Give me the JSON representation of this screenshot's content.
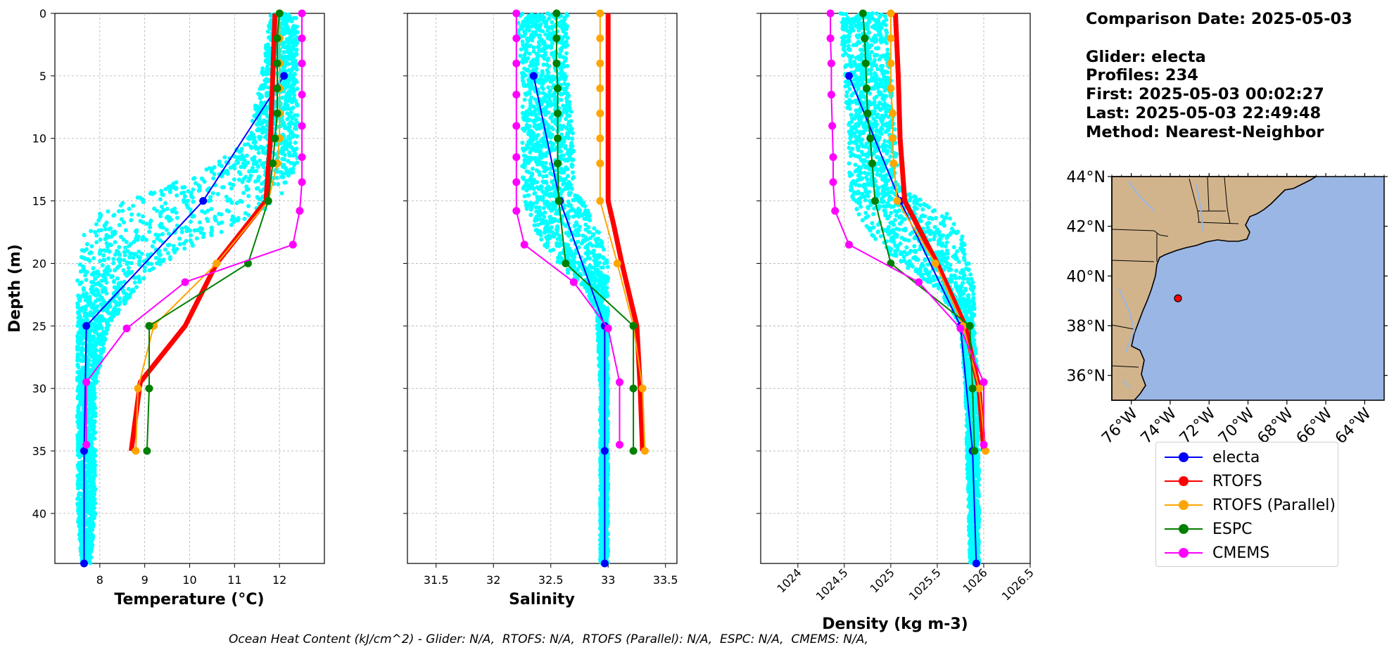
{
  "chart_data": [
    {
      "type": "line",
      "xlabel": "Temperature (°C)",
      "ylabel": "Depth (m)",
      "xlim": [
        7.0,
        13.0
      ],
      "ylim": [
        44,
        0
      ],
      "xticks": [
        8,
        9,
        10,
        11,
        12
      ],
      "yticks": [
        0,
        5,
        10,
        15,
        20,
        25,
        30,
        35,
        40
      ],
      "grid": true,
      "glider_scatter_envelope": [
        [
          0,
          11.8,
          12.4
        ],
        [
          5,
          11.6,
          12.4
        ],
        [
          10,
          11.3,
          12.4
        ],
        [
          12,
          10.6,
          12.4
        ],
        [
          14,
          9.4,
          12.2
        ],
        [
          15,
          8.6,
          12.0
        ],
        [
          16,
          7.9,
          11.6
        ],
        [
          18,
          7.6,
          10.4
        ],
        [
          20,
          7.5,
          9.4
        ],
        [
          22,
          7.5,
          8.8
        ],
        [
          25,
          7.5,
          8.2
        ],
        [
          30,
          7.5,
          7.9
        ],
        [
          35,
          7.5,
          7.9
        ],
        [
          40,
          7.5,
          7.9
        ],
        [
          44,
          7.6,
          7.8
        ]
      ],
      "series": [
        {
          "name": "electa",
          "color": "#0000ff",
          "width": 2,
          "marker": 10,
          "depth": [
            5,
            15,
            25,
            35,
            44
          ],
          "values": [
            12.1,
            10.3,
            7.7,
            7.65,
            7.65
          ]
        },
        {
          "name": "RTOFS",
          "color": "#ff0000",
          "width": 7,
          "marker": 0,
          "depth": [
            0,
            5,
            10,
            15,
            20,
            25,
            29.5,
            35
          ],
          "values": [
            11.9,
            11.85,
            11.8,
            11.7,
            10.6,
            9.9,
            8.9,
            8.7
          ]
        },
        {
          "name": "RTOFS (Parallel)",
          "color": "#ffa500",
          "width": 2,
          "marker": 10,
          "depth": [
            0,
            2,
            4,
            6,
            8,
            10,
            12,
            15,
            20,
            25,
            30,
            35
          ],
          "values": [
            12.0,
            12.0,
            12.0,
            12.0,
            12.0,
            12.0,
            11.95,
            11.75,
            10.6,
            9.2,
            8.85,
            8.8
          ]
        },
        {
          "name": "ESPC",
          "color": "#008000",
          "width": 2,
          "marker": 10,
          "depth": [
            0,
            2,
            4,
            6,
            8,
            10,
            12,
            15,
            20,
            25,
            30,
            35
          ],
          "values": [
            12.0,
            11.95,
            11.95,
            11.95,
            11.95,
            11.9,
            11.85,
            11.75,
            11.3,
            9.1,
            9.1,
            9.05
          ]
        },
        {
          "name": "CMEMS",
          "color": "#ff00ff",
          "width": 2,
          "marker": 10,
          "depth": [
            0,
            2,
            4,
            6.5,
            9,
            11.5,
            13.5,
            15.8,
            18.5,
            21.5,
            25.2,
            29.5,
            34.5
          ],
          "values": [
            12.5,
            12.5,
            12.5,
            12.5,
            12.5,
            12.5,
            12.5,
            12.45,
            12.3,
            9.9,
            8.6,
            7.7,
            7.7
          ]
        }
      ]
    },
    {
      "type": "line",
      "xlabel": "Salinity",
      "ylabel": "",
      "xlim": [
        31.25,
        33.6
      ],
      "ylim": [
        44,
        0
      ],
      "xticks": [
        31.5,
        32.0,
        32.5,
        33.0,
        33.5
      ],
      "yticks": [
        0,
        5,
        10,
        15,
        20,
        25,
        30,
        35,
        40
      ],
      "grid": true,
      "glider_scatter_envelope": [
        [
          0,
          32.2,
          32.65
        ],
        [
          5,
          32.25,
          32.65
        ],
        [
          10,
          32.25,
          32.7
        ],
        [
          14,
          32.25,
          32.7
        ],
        [
          16,
          32.3,
          32.85
        ],
        [
          18,
          32.4,
          32.95
        ],
        [
          20,
          32.55,
          33.0
        ],
        [
          22,
          32.8,
          33.0
        ],
        [
          24,
          32.9,
          33.0
        ],
        [
          30,
          32.93,
          33.0
        ],
        [
          44,
          32.93,
          33.0
        ]
      ],
      "series": [
        {
          "name": "electa",
          "color": "#0000ff",
          "width": 2,
          "marker": 10,
          "depth": [
            5,
            15,
            25,
            35,
            44
          ],
          "values": [
            32.35,
            32.58,
            32.97,
            32.97,
            32.97
          ]
        },
        {
          "name": "RTOFS",
          "color": "#ff0000",
          "width": 7,
          "marker": 0,
          "depth": [
            0,
            5,
            10,
            15,
            17,
            20,
            25,
            30,
            35
          ],
          "values": [
            33.0,
            33.0,
            33.0,
            33.0,
            33.05,
            33.12,
            33.25,
            33.28,
            33.3
          ]
        },
        {
          "name": "RTOFS (Parallel)",
          "color": "#ffa500",
          "width": 2,
          "marker": 10,
          "depth": [
            0,
            2,
            4,
            6,
            8,
            10,
            12,
            15,
            20,
            25,
            30,
            35
          ],
          "values": [
            32.93,
            32.93,
            32.93,
            32.93,
            32.93,
            32.93,
            32.93,
            32.93,
            33.08,
            33.22,
            33.3,
            33.32
          ]
        },
        {
          "name": "ESPC",
          "color": "#008000",
          "width": 2,
          "marker": 10,
          "depth": [
            0,
            2,
            4,
            6,
            8,
            10,
            12,
            15,
            20,
            25,
            30,
            35
          ],
          "values": [
            32.55,
            32.55,
            32.55,
            32.56,
            32.56,
            32.56,
            32.56,
            32.57,
            32.63,
            33.22,
            33.22,
            33.22
          ]
        },
        {
          "name": "CMEMS",
          "color": "#ff00ff",
          "width": 2,
          "marker": 10,
          "depth": [
            0,
            2,
            4,
            6.5,
            9,
            11.5,
            13.5,
            15.8,
            18.5,
            21.5,
            25.2,
            29.5,
            34.5
          ],
          "values": [
            32.2,
            32.2,
            32.2,
            32.2,
            32.2,
            32.2,
            32.2,
            32.2,
            32.27,
            32.7,
            33.0,
            33.1,
            33.1
          ]
        }
      ]
    },
    {
      "type": "line",
      "xlabel": "Density (kg m-3)",
      "ylabel": "",
      "xlim": [
        1023.6,
        1026.5
      ],
      "ylim": [
        44,
        0
      ],
      "xticks": [
        1024.0,
        1024.5,
        1025.0,
        1025.5,
        1026.0,
        1026.5
      ],
      "yticks": [
        0,
        5,
        10,
        15,
        20,
        25,
        30,
        35,
        40
      ],
      "grid": true,
      "glider_scatter_envelope": [
        [
          0,
          1024.45,
          1024.95
        ],
        [
          5,
          1024.5,
          1025.0
        ],
        [
          10,
          1024.55,
          1025.05
        ],
        [
          14,
          1024.55,
          1025.1
        ],
        [
          16,
          1024.65,
          1025.6
        ],
        [
          18,
          1024.8,
          1025.8
        ],
        [
          20,
          1025.1,
          1025.85
        ],
        [
          22,
          1025.5,
          1025.9
        ],
        [
          25,
          1025.75,
          1025.9
        ],
        [
          30,
          1025.8,
          1025.95
        ],
        [
          44,
          1025.85,
          1025.95
        ]
      ],
      "series": [
        {
          "name": "electa",
          "color": "#0000ff",
          "width": 2,
          "marker": 10,
          "depth": [
            5,
            15,
            25,
            35,
            44
          ],
          "values": [
            1024.55,
            1025.1,
            1025.75,
            1025.88,
            1025.92
          ]
        },
        {
          "name": "RTOFS",
          "color": "#ff0000",
          "width": 7,
          "marker": 0,
          "depth": [
            0,
            5,
            10,
            15,
            20,
            25,
            30,
            35
          ],
          "values": [
            1025.05,
            1025.08,
            1025.1,
            1025.15,
            1025.5,
            1025.8,
            1025.95,
            1026.0
          ]
        },
        {
          "name": "RTOFS (Parallel)",
          "color": "#ffa500",
          "width": 2,
          "marker": 10,
          "depth": [
            0,
            2,
            4,
            6,
            8,
            10,
            12,
            15,
            20,
            25,
            30,
            35
          ],
          "values": [
            1025.0,
            1025.0,
            1025.0,
            1025.0,
            1025.02,
            1025.02,
            1025.03,
            1025.07,
            1025.48,
            1025.78,
            1025.95,
            1026.02
          ]
        },
        {
          "name": "ESPC",
          "color": "#008000",
          "width": 2,
          "marker": 10,
          "depth": [
            0,
            2,
            4,
            6,
            8,
            10,
            12,
            15,
            20,
            25,
            30,
            35
          ],
          "values": [
            1024.7,
            1024.72,
            1024.73,
            1024.74,
            1024.75,
            1024.78,
            1024.8,
            1024.83,
            1025.0,
            1025.85,
            1025.88,
            1025.9
          ]
        },
        {
          "name": "CMEMS",
          "color": "#ff00ff",
          "width": 2,
          "marker": 10,
          "depth": [
            0,
            2,
            4,
            6.5,
            9,
            11.5,
            13.5,
            15.8,
            18.5,
            21.5,
            25.2,
            29.5,
            34.5
          ],
          "values": [
            1024.35,
            1024.35,
            1024.36,
            1024.36,
            1024.37,
            1024.38,
            1024.38,
            1024.4,
            1024.55,
            1025.3,
            1025.75,
            1026.0,
            1026.0
          ]
        }
      ]
    }
  ],
  "map": {
    "lon_range": [
      -77,
      -63
    ],
    "lat_range": [
      35,
      44
    ],
    "lon_ticks": [
      "76°W",
      "74°W",
      "72°W",
      "70°W",
      "68°W",
      "66°W",
      "64°W"
    ],
    "lat_ticks": [
      "44°N",
      "42°N",
      "40°N",
      "38°N",
      "36°N"
    ],
    "glider_position": {
      "lon": -73.6,
      "lat": 39.1
    },
    "land_color": "#d2b48c",
    "ocean_color": "#9ab6e4"
  },
  "info": {
    "comparison_date": "Comparison Date: 2025-05-03",
    "glider": "Glider: electa",
    "profiles": "Profiles: 234",
    "first": "First: 2025-05-03 00:02:27",
    "last": "Last: 2025-05-03 22:49:48",
    "method": "Method: Nearest-Neighbor"
  },
  "legend": [
    {
      "label": "electa",
      "color": "#0000ff"
    },
    {
      "label": "RTOFS",
      "color": "#ff0000"
    },
    {
      "label": "RTOFS (Parallel)",
      "color": "#ffa500"
    },
    {
      "label": "ESPC",
      "color": "#008000"
    },
    {
      "label": "CMEMS",
      "color": "#ff00ff"
    }
  ],
  "glider_scatter_color": "#00ffff",
  "footer": "Ocean Heat Content (kJ/cm^2) - Glider: N/A,  RTOFS: N/A,  RTOFS (Parallel): N/A,  ESPC: N/A,  CMEMS: N/A,"
}
